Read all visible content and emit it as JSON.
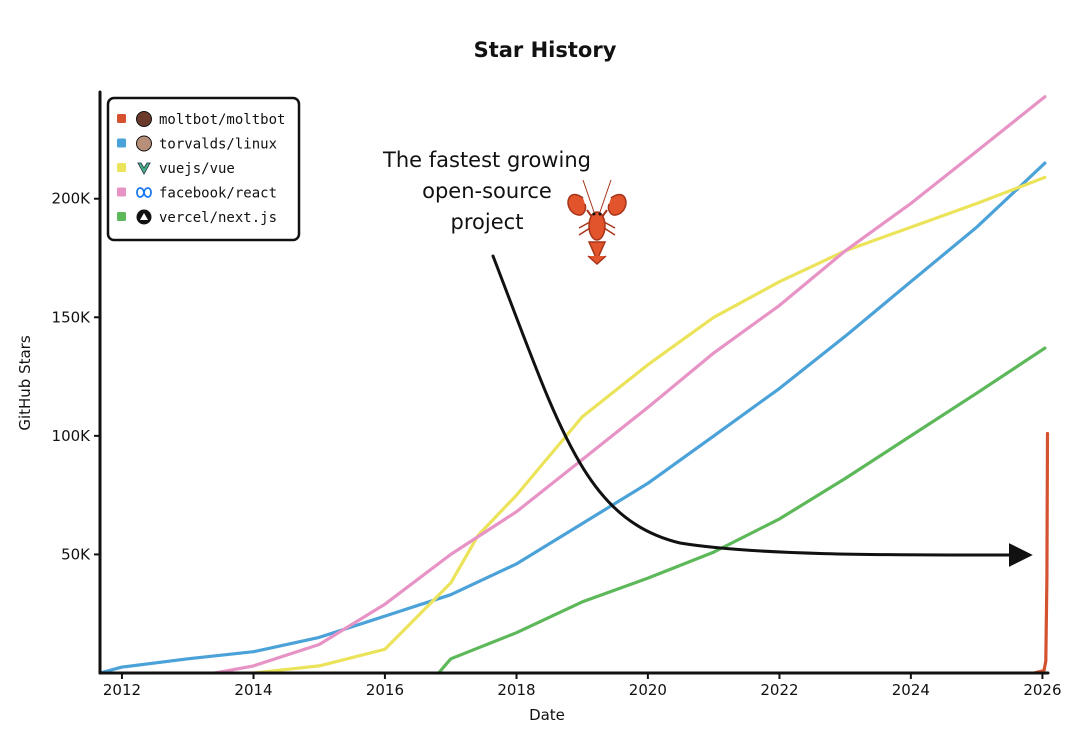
{
  "chart_data": {
    "type": "line",
    "title": "Star History",
    "xlabel": "Date",
    "ylabel": "GitHub Stars",
    "xlim": [
      "2011-09-01",
      "2026-02-01"
    ],
    "ylim": [
      0,
      245000
    ],
    "x_ticks": [
      "2012",
      "2014",
      "2016",
      "2018",
      "2020",
      "2022",
      "2024",
      "2026"
    ],
    "y_ticks": [
      {
        "label": "50K",
        "value": 50000
      },
      {
        "label": "100K",
        "value": 100000
      },
      {
        "label": "150K",
        "value": 150000
      },
      {
        "label": "200K",
        "value": 200000
      }
    ],
    "grid": false,
    "legend_position": "top-left",
    "annotation": {
      "lines": [
        "The fastest growing",
        "open-source",
        "project"
      ],
      "icon": "lobster-icon"
    },
    "series": [
      {
        "name": "moltbot/moltbot",
        "color": "#d4522f",
        "icon": "avatar-icon",
        "points": [
          [
            "2025-11-15",
            0
          ],
          [
            "2026-01-10",
            1000
          ],
          [
            "2026-01-20",
            5000
          ],
          [
            "2026-01-26",
            40000
          ],
          [
            "2026-01-29",
            101000
          ]
        ]
      },
      {
        "name": "torvalds/linux",
        "color": "#4ba2d9",
        "icon": "avatar-icon",
        "points": [
          [
            "2011-09-01",
            0
          ],
          [
            "2012-01-01",
            2500
          ],
          [
            "2013-01-01",
            6000
          ],
          [
            "2014-01-01",
            9000
          ],
          [
            "2015-01-01",
            15000
          ],
          [
            "2016-01-01",
            24000
          ],
          [
            "2017-01-01",
            33000
          ],
          [
            "2018-01-01",
            46000
          ],
          [
            "2019-01-01",
            63000
          ],
          [
            "2020-01-01",
            80000
          ],
          [
            "2021-01-01",
            100000
          ],
          [
            "2022-01-01",
            120000
          ],
          [
            "2023-01-01",
            142000
          ],
          [
            "2024-01-01",
            165000
          ],
          [
            "2025-01-01",
            188000
          ],
          [
            "2026-01-15",
            215000
          ]
        ]
      },
      {
        "name": "vuejs/vue",
        "color": "#ebe35a",
        "icon": "vue-logo-icon",
        "points": [
          [
            "2014-01-01",
            0
          ],
          [
            "2015-01-01",
            3000
          ],
          [
            "2016-01-01",
            10000
          ],
          [
            "2017-01-01",
            38000
          ],
          [
            "2017-06-01",
            58000
          ],
          [
            "2018-01-01",
            75000
          ],
          [
            "2019-01-01",
            108000
          ],
          [
            "2020-01-01",
            130000
          ],
          [
            "2021-01-01",
            150000
          ],
          [
            "2022-01-01",
            165000
          ],
          [
            "2023-01-01",
            178000
          ],
          [
            "2024-01-01",
            188000
          ],
          [
            "2025-01-01",
            198000
          ],
          [
            "2026-01-15",
            209000
          ]
        ]
      },
      {
        "name": "facebook/react",
        "color": "#e893c6",
        "icon": "meta-logo-icon",
        "points": [
          [
            "2013-06-01",
            0
          ],
          [
            "2014-01-01",
            3000
          ],
          [
            "2015-01-01",
            12000
          ],
          [
            "2016-01-01",
            29000
          ],
          [
            "2017-01-01",
            50000
          ],
          [
            "2018-01-01",
            68000
          ],
          [
            "2019-01-01",
            90000
          ],
          [
            "2020-01-01",
            112000
          ],
          [
            "2021-01-01",
            135000
          ],
          [
            "2022-01-01",
            155000
          ],
          [
            "2023-01-01",
            178000
          ],
          [
            "2024-01-01",
            198000
          ],
          [
            "2025-01-01",
            220000
          ],
          [
            "2026-01-15",
            243000
          ]
        ]
      },
      {
        "name": "vercel/next.js",
        "color": "#5db85a",
        "icon": "nextjs-logo-icon",
        "points": [
          [
            "2016-10-25",
            0
          ],
          [
            "2017-01-01",
            6000
          ],
          [
            "2018-01-01",
            17000
          ],
          [
            "2019-01-01",
            30000
          ],
          [
            "2020-01-01",
            40000
          ],
          [
            "2021-01-01",
            51000
          ],
          [
            "2022-01-01",
            65000
          ],
          [
            "2023-01-01",
            82000
          ],
          [
            "2024-01-01",
            100000
          ],
          [
            "2025-01-01",
            118000
          ],
          [
            "2026-01-15",
            137000
          ]
        ]
      }
    ]
  }
}
